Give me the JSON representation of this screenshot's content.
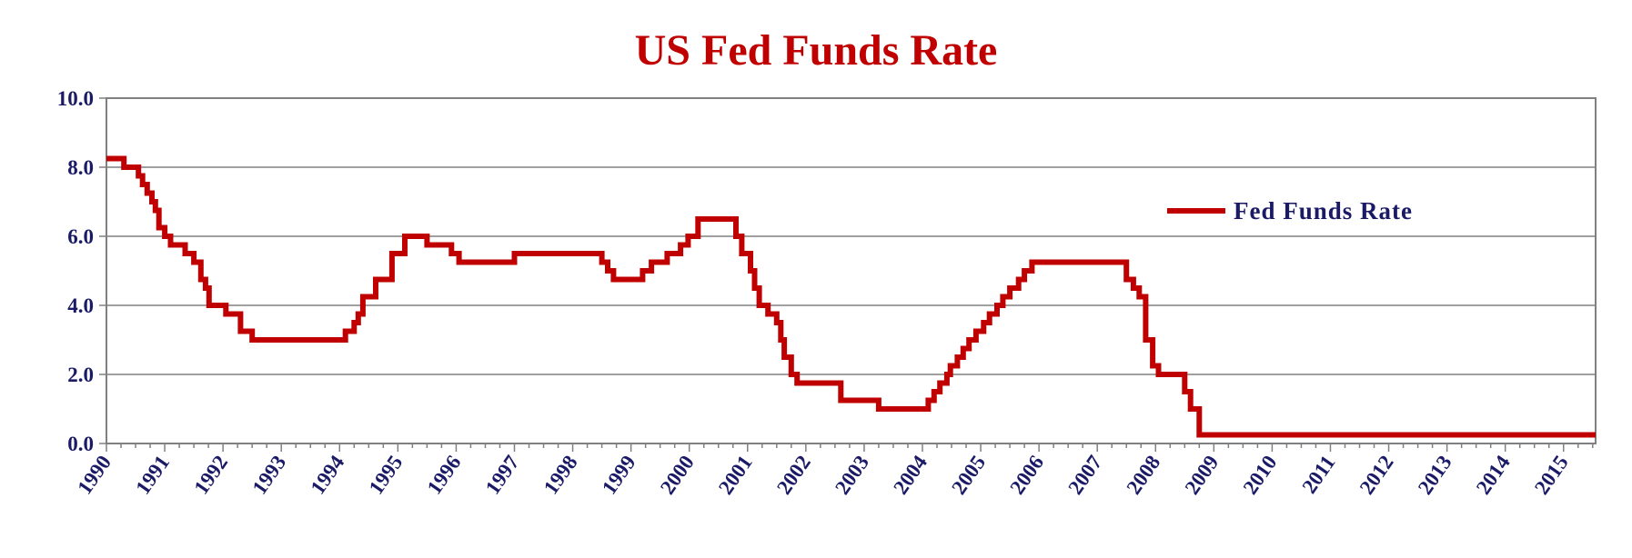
{
  "chart_data": {
    "type": "line",
    "title": "US Fed Funds Rate",
    "xlabel": "",
    "ylabel": "",
    "ylim": [
      0,
      10
    ],
    "xlim": [
      1990,
      2015.55
    ],
    "grid": true,
    "legend_position": "upper-right",
    "yticks": [
      "0.0",
      "2.0",
      "4.0",
      "6.0",
      "8.0",
      "10.0"
    ],
    "xticks": [
      "1990",
      "1991",
      "1992",
      "1993",
      "1994",
      "1995",
      "1996",
      "1997",
      "1998",
      "1999",
      "2000",
      "2001",
      "2002",
      "2003",
      "2004",
      "2005",
      "2006",
      "2007",
      "2008",
      "2009",
      "2010",
      "2011",
      "2012",
      "2013",
      "2014",
      "2015"
    ],
    "colors": {
      "series": "#c00000",
      "title": "#c00000",
      "axis_text": "#1a1a66",
      "grid": "#808080"
    },
    "series": [
      {
        "name": "Fed Funds Rate",
        "step": true,
        "points": [
          [
            1990.0,
            8.25
          ],
          [
            1990.3,
            8.0
          ],
          [
            1990.55,
            7.75
          ],
          [
            1990.62,
            7.5
          ],
          [
            1990.7,
            7.25
          ],
          [
            1990.78,
            7.0
          ],
          [
            1990.84,
            6.75
          ],
          [
            1990.9,
            6.25
          ],
          [
            1991.0,
            6.0
          ],
          [
            1991.1,
            5.75
          ],
          [
            1991.35,
            5.5
          ],
          [
            1991.5,
            5.25
          ],
          [
            1991.62,
            4.75
          ],
          [
            1991.7,
            4.5
          ],
          [
            1991.76,
            4.0
          ],
          [
            1992.05,
            3.75
          ],
          [
            1992.3,
            3.25
          ],
          [
            1992.5,
            3.0
          ],
          [
            1994.1,
            3.25
          ],
          [
            1994.25,
            3.5
          ],
          [
            1994.32,
            3.75
          ],
          [
            1994.4,
            4.25
          ],
          [
            1994.62,
            4.75
          ],
          [
            1994.9,
            5.5
          ],
          [
            1995.12,
            6.0
          ],
          [
            1995.5,
            5.75
          ],
          [
            1995.92,
            5.5
          ],
          [
            1996.05,
            5.25
          ],
          [
            1997.0,
            5.5
          ],
          [
            1998.5,
            5.25
          ],
          [
            1998.6,
            5.0
          ],
          [
            1998.7,
            4.75
          ],
          [
            1999.2,
            5.0
          ],
          [
            1999.35,
            5.25
          ],
          [
            1999.62,
            5.5
          ],
          [
            1999.85,
            5.75
          ],
          [
            1999.98,
            6.0
          ],
          [
            2000.15,
            6.5
          ],
          [
            2000.8,
            6.0
          ],
          [
            2000.9,
            5.5
          ],
          [
            2001.05,
            5.0
          ],
          [
            2001.12,
            4.5
          ],
          [
            2001.2,
            4.0
          ],
          [
            2001.35,
            3.75
          ],
          [
            2001.5,
            3.5
          ],
          [
            2001.57,
            3.0
          ],
          [
            2001.63,
            2.5
          ],
          [
            2001.75,
            2.0
          ],
          [
            2001.85,
            1.75
          ],
          [
            2002.6,
            1.25
          ],
          [
            2003.25,
            1.0
          ],
          [
            2004.1,
            1.25
          ],
          [
            2004.2,
            1.5
          ],
          [
            2004.3,
            1.75
          ],
          [
            2004.42,
            2.0
          ],
          [
            2004.48,
            2.25
          ],
          [
            2004.6,
            2.5
          ],
          [
            2004.7,
            2.75
          ],
          [
            2004.8,
            3.0
          ],
          [
            2004.92,
            3.25
          ],
          [
            2005.05,
            3.5
          ],
          [
            2005.15,
            3.75
          ],
          [
            2005.28,
            4.0
          ],
          [
            2005.38,
            4.25
          ],
          [
            2005.5,
            4.5
          ],
          [
            2005.65,
            4.75
          ],
          [
            2005.75,
            5.0
          ],
          [
            2005.88,
            5.25
          ],
          [
            2007.5,
            4.75
          ],
          [
            2007.62,
            4.5
          ],
          [
            2007.72,
            4.25
          ],
          [
            2007.83,
            3.0
          ],
          [
            2007.95,
            2.25
          ],
          [
            2008.05,
            2.0
          ],
          [
            2008.5,
            1.5
          ],
          [
            2008.6,
            1.0
          ],
          [
            2008.75,
            0.25
          ],
          [
            2015.55,
            0.25
          ]
        ]
      }
    ]
  }
}
